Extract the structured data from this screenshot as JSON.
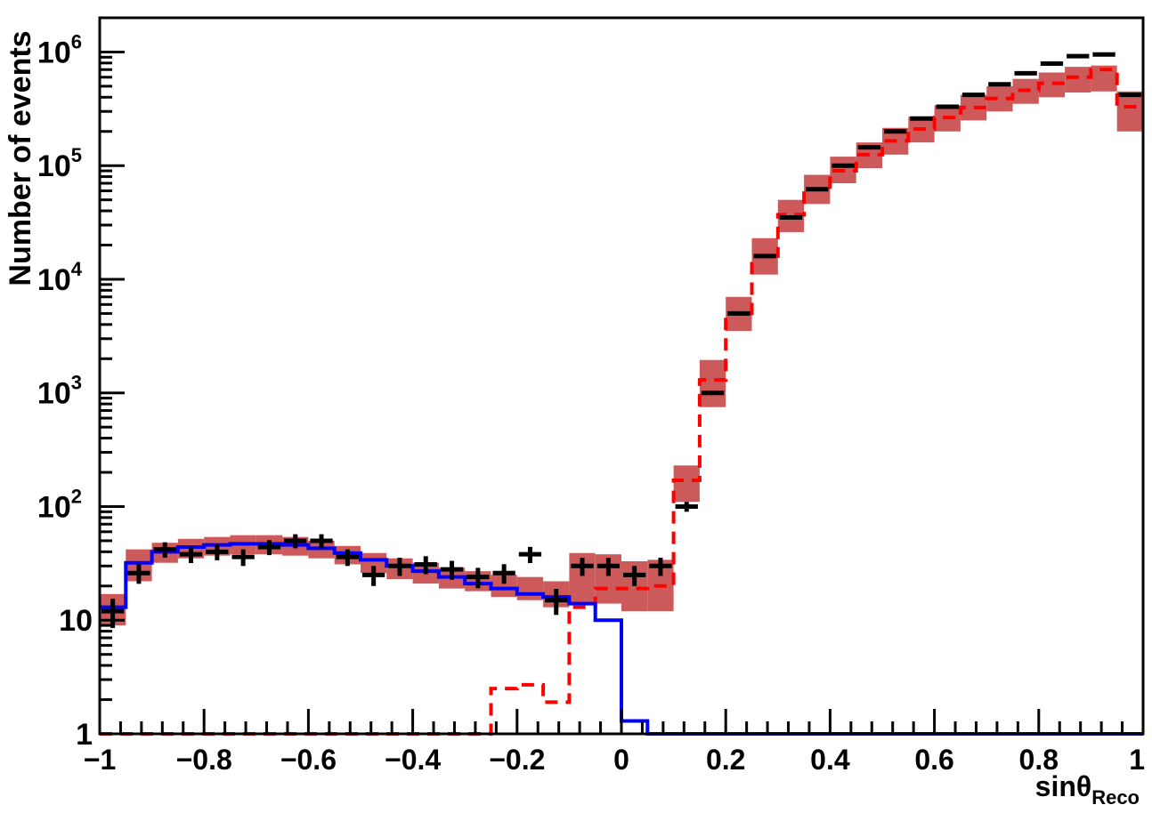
{
  "chart_data": {
    "type": "histogram",
    "xlabel": "sinθ",
    "xlabel_sub": "Reco",
    "ylabel": "Number of events",
    "xlim": [
      -1,
      1
    ],
    "ylim": [
      1,
      2000000
    ],
    "yscale": "log",
    "grid": false,
    "x_ticks": [
      {
        "value": -1,
        "label": "−1"
      },
      {
        "value": -0.8,
        "label": "−0.8"
      },
      {
        "value": -0.6,
        "label": "−0.6"
      },
      {
        "value": -0.4,
        "label": "−0.4"
      },
      {
        "value": -0.2,
        "label": "−0.2"
      },
      {
        "value": 0,
        "label": "0"
      },
      {
        "value": 0.2,
        "label": "0.2"
      },
      {
        "value": 0.4,
        "label": "0.4"
      },
      {
        "value": 0.6,
        "label": "0.6"
      },
      {
        "value": 0.8,
        "label": "0.8"
      },
      {
        "value": 1,
        "label": "1"
      }
    ],
    "y_ticks": [
      {
        "value": 1,
        "base": "1",
        "exp": ""
      },
      {
        "value": 10,
        "base": "10",
        "exp": ""
      },
      {
        "value": 100,
        "base": "10",
        "exp": "2"
      },
      {
        "value": 1000,
        "base": "10",
        "exp": "3"
      },
      {
        "value": 10000,
        "base": "10",
        "exp": "4"
      },
      {
        "value": 100000,
        "base": "10",
        "exp": "5"
      },
      {
        "value": 1000000,
        "base": "10",
        "exp": "6"
      }
    ],
    "bin_edges": [
      -1,
      -0.95,
      -0.9,
      -0.85,
      -0.8,
      -0.75,
      -0.7,
      -0.65,
      -0.6,
      -0.55,
      -0.5,
      -0.45,
      -0.4,
      -0.35,
      -0.3,
      -0.25,
      -0.2,
      -0.15,
      -0.1,
      -0.05,
      0,
      0.05,
      0.1,
      0.15,
      0.2,
      0.25,
      0.3,
      0.35,
      0.4,
      0.45,
      0.5,
      0.55,
      0.6,
      0.65,
      0.7,
      0.75,
      0.8,
      0.85,
      0.9,
      0.95,
      1
    ],
    "series": [
      {
        "name": "",
        "kind": "band",
        "color": "#cc5a5a",
        "low": [
          9,
          22,
          32,
          35,
          37,
          38,
          38,
          37,
          35,
          31,
          26,
          23,
          21,
          19,
          18,
          16,
          15,
          13,
          14,
          14,
          12,
          12,
          110,
          750,
          3500,
          11000,
          26000,
          46000,
          70000,
          95000,
          125000,
          160000,
          200000,
          250000,
          300000,
          350000,
          400000,
          440000,
          450000,
          200000
        ],
        "high": [
          17,
          42,
          48,
          52,
          54,
          56,
          56,
          54,
          50,
          45,
          39,
          35,
          32,
          29,
          27,
          25,
          24,
          22,
          39,
          38,
          33,
          34,
          230,
          1950,
          7000,
          23000,
          50000,
          83000,
          120000,
          160000,
          215000,
          270000,
          340000,
          420000,
          500000,
          580000,
          660000,
          740000,
          760000,
          450000
        ]
      },
      {
        "name": "",
        "kind": "step",
        "color": "#ff0000",
        "dash": true,
        "values": [
          1,
          1,
          1,
          1,
          1,
          1,
          1,
          1,
          1,
          1,
          1,
          1,
          1,
          1,
          1,
          2.5,
          2.7,
          1.9,
          13,
          19,
          19,
          20,
          170,
          1300,
          5000,
          16000,
          37000,
          62000,
          90000,
          125000,
          165000,
          210000,
          265000,
          325000,
          390000,
          460000,
          530000,
          600000,
          700000,
          330000
        ]
      },
      {
        "name": "",
        "kind": "step",
        "color": "#0000ff",
        "dash": false,
        "values": [
          13,
          32,
          40,
          44,
          46,
          47,
          47,
          46,
          43,
          39,
          34,
          30,
          27,
          24,
          21,
          19,
          17,
          16,
          14,
          10,
          1.3,
          1,
          1,
          1,
          1,
          1,
          1,
          1,
          1,
          1,
          1,
          1,
          1,
          1,
          1,
          1,
          1,
          1,
          1,
          1
        ]
      },
      {
        "name": "",
        "kind": "points",
        "color": "#000000",
        "values": [
          12,
          26,
          42,
          38,
          40,
          36,
          44,
          50,
          50,
          36,
          25,
          30,
          31,
          28,
          24,
          26,
          38,
          15,
          30,
          30,
          25,
          30,
          100,
          1000,
          5000,
          16000,
          35000,
          62000,
          100000,
          145000,
          200000,
          260000,
          330000,
          420000,
          520000,
          650000,
          790000,
          920000,
          950000,
          420000
        ]
      }
    ]
  }
}
